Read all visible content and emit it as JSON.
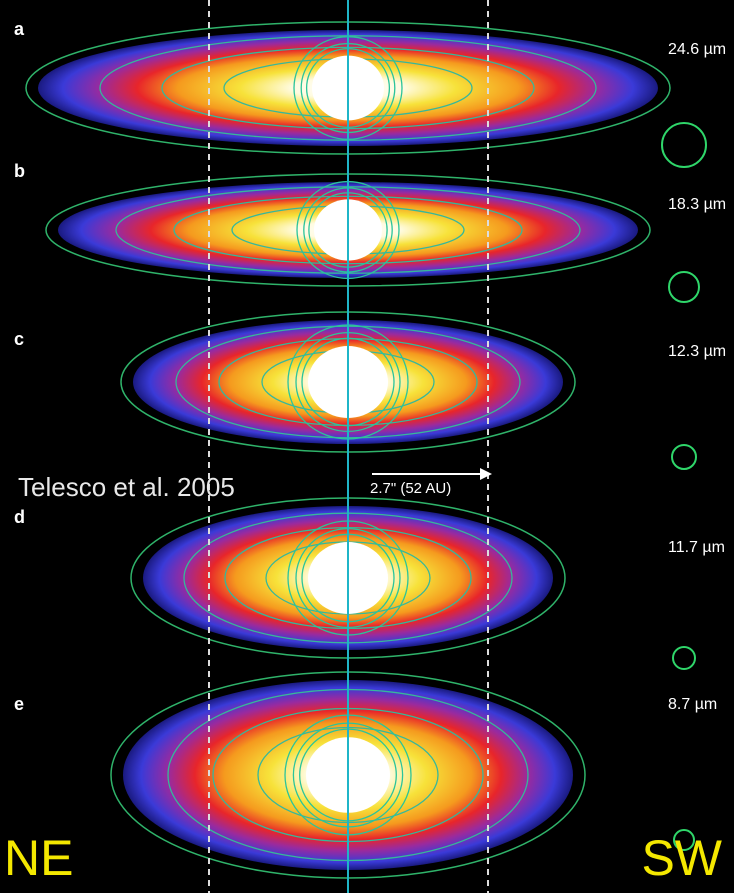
{
  "panels": [
    {
      "letter": "a",
      "wavelength": "24.6 µm"
    },
    {
      "letter": "b",
      "wavelength": "18.3 µm"
    },
    {
      "letter": "c",
      "wavelength": "12.3 µm"
    },
    {
      "letter": "d",
      "wavelength": "11.7 µm"
    },
    {
      "letter": "e",
      "wavelength": "8.7 µm"
    }
  ],
  "citation": "Telesco et al. 2005",
  "scale_bar": "2.7\" (52 AU)",
  "left_direction": "NE",
  "right_direction": "SW"
}
